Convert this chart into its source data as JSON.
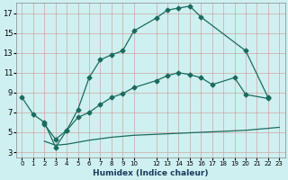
{
  "xlabel": "Humidex (Indice chaleur)",
  "bg_color": "#cff0f0",
  "grid_color_minor": "#dda0a0",
  "grid_color_major": "#bbbbbb",
  "line_color": "#1a6b5e",
  "xlim": [
    -0.5,
    23.5
  ],
  "ylim": [
    2.5,
    18.0
  ],
  "xticks": [
    0,
    1,
    2,
    3,
    4,
    5,
    6,
    7,
    8,
    9,
    10,
    12,
    13,
    14,
    15,
    16,
    17,
    18,
    19,
    20,
    21,
    22,
    23
  ],
  "yticks": [
    3,
    5,
    7,
    9,
    11,
    13,
    15,
    17
  ],
  "curve1_x": [
    0,
    1,
    2,
    3,
    4,
    5,
    6,
    7,
    8,
    9,
    10,
    12,
    13,
    14,
    15,
    16,
    20,
    22
  ],
  "curve1_y": [
    8.5,
    6.8,
    6.0,
    3.5,
    5.2,
    7.3,
    10.5,
    12.3,
    12.8,
    13.2,
    15.2,
    16.5,
    17.3,
    17.5,
    17.7,
    16.6,
    13.2,
    8.5
  ],
  "curve2_x": [
    2,
    3,
    4,
    5,
    6,
    7,
    8,
    9,
    10,
    12,
    13,
    14,
    15,
    16,
    17,
    19,
    20,
    22
  ],
  "curve2_y": [
    5.8,
    4.3,
    5.2,
    6.5,
    7.0,
    7.8,
    8.5,
    8.9,
    9.5,
    10.2,
    10.7,
    11.0,
    10.8,
    10.5,
    9.8,
    10.5,
    8.8,
    8.4
  ],
  "curve3_x": [
    2,
    3,
    4,
    5,
    6,
    7,
    8,
    9,
    10,
    12,
    13,
    14,
    15,
    16,
    17,
    18,
    19,
    20,
    21,
    22,
    23
  ],
  "curve3_y": [
    4.1,
    3.7,
    3.8,
    4.0,
    4.2,
    4.35,
    4.5,
    4.6,
    4.7,
    4.8,
    4.85,
    4.9,
    4.95,
    5.0,
    5.05,
    5.1,
    5.15,
    5.2,
    5.3,
    5.4,
    5.5
  ]
}
